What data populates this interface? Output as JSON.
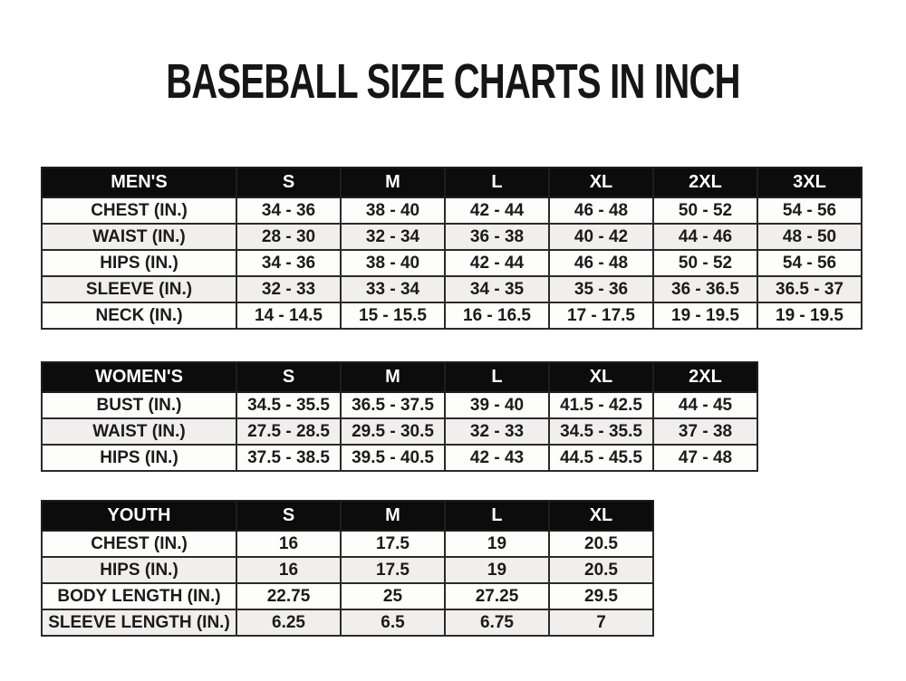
{
  "page": {
    "title": "BASEBALL SIZE CHARTS IN INCH"
  },
  "colors": {
    "background": "#ffffff",
    "header_bg": "#0c0c0c",
    "header_text": "#ffffff",
    "row_bg": "#fdfdfc",
    "row_alt_bg": "#f0efed",
    "border": "#2a2a2a",
    "text": "#1b1b1b"
  },
  "tables": [
    {
      "id": "mens",
      "header": [
        "MEN'S",
        "S",
        "M",
        "L",
        "XL",
        "2XL",
        "3XL"
      ],
      "rows": [
        {
          "label": "CHEST (IN.)",
          "values": [
            "34 - 36",
            "38 - 40",
            "42 - 44",
            "46 - 48",
            "50 - 52",
            "54 - 56"
          ]
        },
        {
          "label": "WAIST (IN.)",
          "values": [
            "28 - 30",
            "32 - 34",
            "36 - 38",
            "40 - 42",
            "44 - 46",
            "48 - 50"
          ]
        },
        {
          "label": "HIPS (IN.)",
          "values": [
            "34 - 36",
            "38 - 40",
            "42 - 44",
            "46 - 48",
            "50 - 52",
            "54 - 56"
          ]
        },
        {
          "label": "SLEEVE (IN.)",
          "values": [
            "32 - 33",
            "33 - 34",
            "34 - 35",
            "35 - 36",
            "36 - 36.5",
            "36.5 - 37"
          ]
        },
        {
          "label": "NECK (IN.)",
          "values": [
            "14 - 14.5",
            "15 - 15.5",
            "16 - 16.5",
            "17 - 17.5",
            "19 - 19.5",
            "19 - 19.5"
          ]
        }
      ]
    },
    {
      "id": "womens",
      "header": [
        "WOMEN'S",
        "S",
        "M",
        "L",
        "XL",
        "2XL"
      ],
      "rows": [
        {
          "label": "BUST (IN.)",
          "values": [
            "34.5 - 35.5",
            "36.5 - 37.5",
            "39 - 40",
            "41.5 - 42.5",
            "44 - 45"
          ]
        },
        {
          "label": "WAIST (IN.)",
          "values": [
            "27.5 - 28.5",
            "29.5 - 30.5",
            "32 - 33",
            "34.5 - 35.5",
            "37 - 38"
          ]
        },
        {
          "label": "HIPS (IN.)",
          "values": [
            "37.5 - 38.5",
            "39.5 - 40.5",
            "42 - 43",
            "44.5 - 45.5",
            "47 - 48"
          ]
        }
      ]
    },
    {
      "id": "youth",
      "header": [
        "YOUTH",
        "S",
        "M",
        "L",
        "XL"
      ],
      "rows": [
        {
          "label": "CHEST (IN.)",
          "values": [
            "16",
            "17.5",
            "19",
            "20.5"
          ]
        },
        {
          "label": "HIPS (IN.)",
          "values": [
            "16",
            "17.5",
            "19",
            "20.5"
          ]
        },
        {
          "label": "BODY LENGTH (IN.)",
          "values": [
            "22.75",
            "25",
            "27.25",
            "29.5"
          ]
        },
        {
          "label": "SLEEVE LENGTH (IN.)",
          "values": [
            "6.25",
            "6.5",
            "6.75",
            "7"
          ]
        }
      ]
    }
  ]
}
